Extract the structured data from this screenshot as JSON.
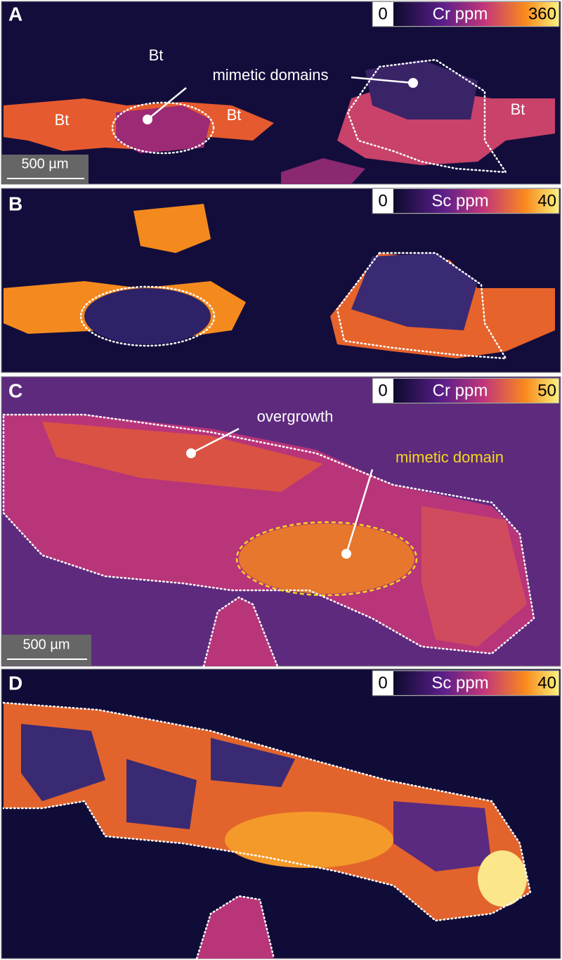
{
  "panels": [
    {
      "label": "A",
      "colorbar": {
        "min": "0",
        "title": "Cr ppm",
        "max": "360"
      },
      "annotations": [
        "Bt",
        "mimetic domains",
        "Bt",
        "Bt",
        "Bt"
      ],
      "scale_bar": "500 µm"
    },
    {
      "label": "B",
      "colorbar": {
        "min": "0",
        "title": "Sc ppm",
        "max": "40"
      }
    },
    {
      "label": "C",
      "colorbar": {
        "min": "0",
        "title": "Cr ppm",
        "max": "50"
      },
      "annotations": [
        "overgrowth",
        "mimetic domain"
      ],
      "scale_bar": "500 µm"
    },
    {
      "label": "D",
      "colorbar": {
        "min": "0",
        "title": "Sc ppm",
        "max": "40"
      }
    }
  ]
}
